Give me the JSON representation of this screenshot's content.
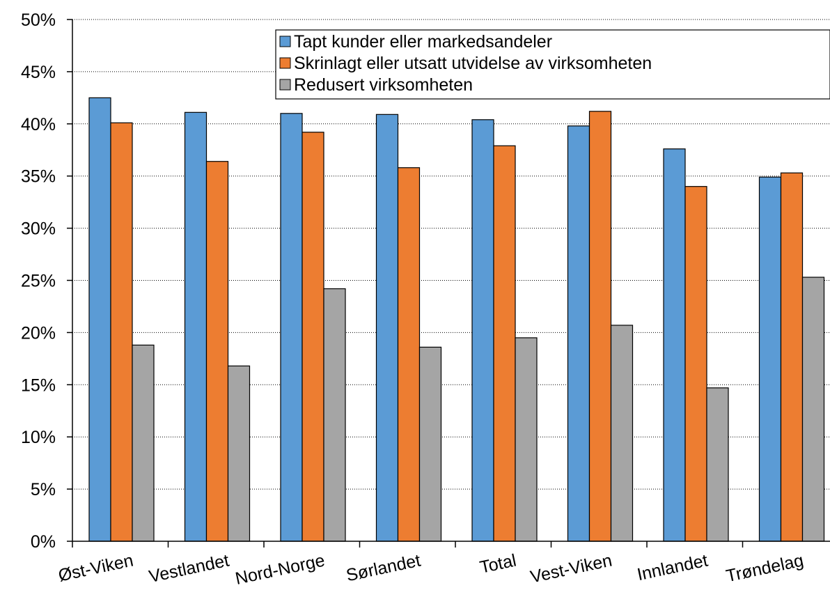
{
  "chart_data": {
    "type": "bar",
    "title": "",
    "xlabel": "",
    "ylabel": "",
    "ylim": [
      0,
      0.5
    ],
    "yticks": [
      "0%",
      "5%",
      "10%",
      "15%",
      "20%",
      "25%",
      "30%",
      "35%",
      "40%",
      "45%",
      "50%"
    ],
    "grid": "horizontal dotted",
    "legend_position": "top-right",
    "categories": [
      "Øst-Viken",
      "Vestlandet",
      "Nord-Norge",
      "Sørlandet",
      "Total",
      "Vest-Viken",
      "Innlandet",
      "Trøndelag"
    ],
    "series": [
      {
        "name": "Tapt kunder eller markedsandeler",
        "color": "#5b9bd5",
        "values": [
          0.425,
          0.411,
          0.41,
          0.409,
          0.404,
          0.398,
          0.376,
          0.349
        ]
      },
      {
        "name": "Skrinlagt eller utsatt utvidelse av virksomheten",
        "color": "#ed7d31",
        "values": [
          0.401,
          0.364,
          0.392,
          0.358,
          0.379,
          0.412,
          0.34,
          0.353
        ]
      },
      {
        "name": "Redusert virksomheten",
        "color": "#a5a5a5",
        "values": [
          0.188,
          0.168,
          0.242,
          0.186,
          0.195,
          0.207,
          0.147,
          0.253
        ]
      }
    ]
  }
}
